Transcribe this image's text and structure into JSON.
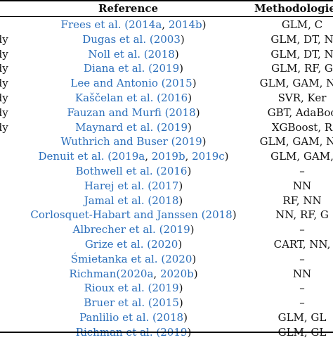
{
  "header": {
    "reference": "Reference",
    "methodologies": "Methodologies"
  },
  "link_color": "#2a6ebb",
  "rows": [
    {
      "c1": "",
      "ref": [
        [
          "b",
          "Frees et al. ("
        ],
        [
          "b",
          "2014a"
        ],
        [
          "k",
          ", "
        ],
        [
          "b",
          "2014b"
        ],
        [
          "k",
          ")"
        ]
      ],
      "meth": "GLM, C"
    },
    {
      "c1": "udy",
      "ref": [
        [
          "b",
          "Dugas et al. ("
        ],
        [
          "b",
          "2003"
        ],
        [
          "k",
          ")"
        ]
      ],
      "meth": "GLM, DT, N"
    },
    {
      "c1": "udy",
      "ref": [
        [
          "b",
          "Noll et al. ("
        ],
        [
          "b",
          "2018"
        ],
        [
          "k",
          ")"
        ]
      ],
      "meth": "GLM, DT, N"
    },
    {
      "c1": "udy",
      "ref": [
        [
          "b",
          "Diana et al. ("
        ],
        [
          "b",
          "2019"
        ],
        [
          "k",
          ")"
        ]
      ],
      "meth": "GLM, RF, G"
    },
    {
      "c1": "udy",
      "ref": [
        [
          "b",
          "Lee and Antonio ("
        ],
        [
          "b",
          "2015"
        ],
        [
          "k",
          ")"
        ]
      ],
      "meth": "GLM, GAM, NN"
    },
    {
      "c1": "udy",
      "ref": [
        [
          "b",
          "Kaščelan et al. ("
        ],
        [
          "b",
          "2016"
        ],
        [
          "k",
          ")"
        ]
      ],
      "meth": "SVR, Ker"
    },
    {
      "c1": "udy",
      "ref": [
        [
          "b",
          "Fauzan and Murfi ("
        ],
        [
          "b",
          "2018"
        ],
        [
          "k",
          ")"
        ]
      ],
      "meth": "GBT, AdaBoo"
    },
    {
      "c1": "udy",
      "ref": [
        [
          "b",
          "Maynard et al. ("
        ],
        [
          "b",
          "2019"
        ],
        [
          "k",
          ")"
        ]
      ],
      "meth": "XGBoost, R"
    },
    {
      "c1": "s",
      "ref": [
        [
          "b",
          "Wuthrich and Buser ("
        ],
        [
          "b",
          "2019"
        ],
        [
          "k",
          ")"
        ]
      ],
      "meth": "GLM, GAM, NN"
    },
    {
      "c1": "s",
      "ref": [
        [
          "b",
          "Denuit et al. ("
        ],
        [
          "b",
          "2019a"
        ],
        [
          "k",
          ", "
        ],
        [
          "b",
          "2019b"
        ],
        [
          "k",
          ", "
        ],
        [
          "b",
          "2019c"
        ],
        [
          "k",
          ")"
        ]
      ],
      "meth": "GLM, GAM, "
    },
    {
      "c1": "",
      "ref": [
        [
          "b",
          "Bothwell et al. ("
        ],
        [
          "b",
          "2016"
        ],
        [
          "k",
          ")"
        ]
      ],
      "meth": "–"
    },
    {
      "c1": "",
      "ref": [
        [
          "b",
          "Harej et al. ("
        ],
        [
          "b",
          "2017"
        ],
        [
          "k",
          ")"
        ]
      ],
      "meth": "NN"
    },
    {
      "c1": "",
      "ref": [
        [
          "b",
          "Jamal et al. ("
        ],
        [
          "b",
          "2018"
        ],
        [
          "k",
          ")"
        ]
      ],
      "meth": "RF, NN"
    },
    {
      "c1": "",
      "ref": [
        [
          "b",
          "Corlosquet-Habart and Janssen ("
        ],
        [
          "b",
          "2018"
        ],
        [
          "k",
          ")"
        ]
      ],
      "meth": "NN, RF, G"
    },
    {
      "c1": "",
      "ref": [
        [
          "b",
          "Albrecher et al. ("
        ],
        [
          "b",
          "2019"
        ],
        [
          "k",
          ")"
        ]
      ],
      "meth": "–"
    },
    {
      "c1": "",
      "ref": [
        [
          "b",
          "Grize et al. ("
        ],
        [
          "b",
          "2020"
        ],
        [
          "k",
          ")"
        ]
      ],
      "meth": "CART, NN,"
    },
    {
      "c1": "",
      "ref": [
        [
          "b",
          "Śmietanka et al. ("
        ],
        [
          "b",
          "2020"
        ],
        [
          "k",
          ")"
        ]
      ],
      "meth": "–"
    },
    {
      "c1": "",
      "ref": [
        [
          "b",
          "Richman("
        ],
        [
          "b",
          "2020a"
        ],
        [
          "k",
          ", "
        ],
        [
          "b",
          "2020b"
        ],
        [
          "k",
          ")"
        ]
      ],
      "meth": "NN"
    },
    {
      "c1": "",
      "ref": [
        [
          "b",
          "Rioux et al. ("
        ],
        [
          "b",
          "2019"
        ],
        [
          "k",
          ")"
        ]
      ],
      "meth": "–"
    },
    {
      "c1": "",
      "ref": [
        [
          "b",
          "Bruer et al. ("
        ],
        [
          "b",
          "2015"
        ],
        [
          "k",
          ")"
        ]
      ],
      "meth": "–"
    },
    {
      "c1": "",
      "ref": [
        [
          "b",
          "Panlilio et al. ("
        ],
        [
          "b",
          "2018"
        ],
        [
          "k",
          ")"
        ]
      ],
      "meth": "GLM, GL"
    },
    {
      "c1": "",
      "ref": [
        [
          "b",
          "Richman et al. ("
        ],
        [
          "b",
          "2019"
        ],
        [
          "k",
          ")"
        ]
      ],
      "meth": "GLM, GL"
    }
  ]
}
